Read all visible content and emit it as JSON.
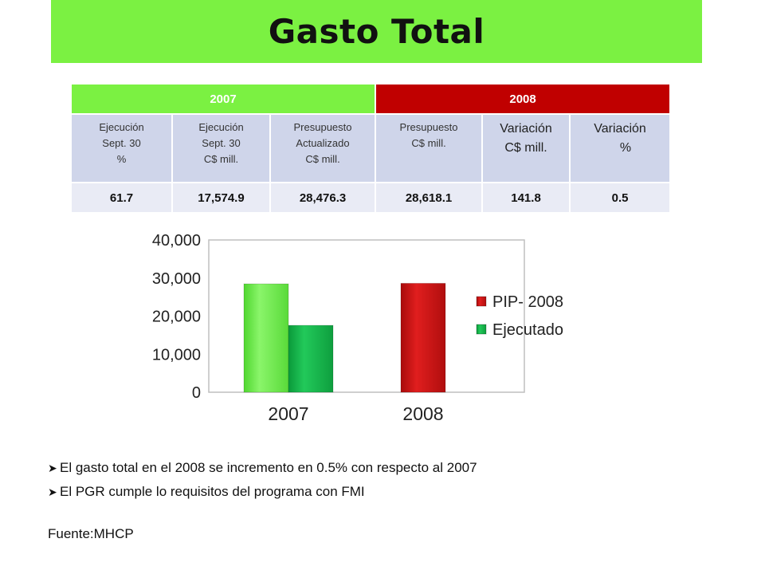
{
  "title": "Gasto Total",
  "table": {
    "year_2007": "2007",
    "year_2008": "2008",
    "headers": [
      [
        "Ejecución",
        "Sept. 30",
        "%"
      ],
      [
        "Ejecución",
        "Sept. 30",
        "C$ mill."
      ],
      [
        "Presupuesto",
        "Actualizado",
        "C$ mill."
      ],
      [
        "Presupuesto",
        "C$ mill."
      ],
      [
        "Variación",
        "C$ mill."
      ],
      [
        "Variación",
        "%"
      ]
    ],
    "values": [
      "61.7",
      "17,574.9",
      "28,476.3",
      "28,618.1",
      "141.8",
      "0.5"
    ]
  },
  "chart_data": {
    "type": "bar",
    "categories": [
      "2007",
      "2008"
    ],
    "series": [
      {
        "name": "PIP- 2008",
        "values": [
          28476.3,
          28618.1
        ],
        "color": "#e03030"
      },
      {
        "name": "Ejecutado",
        "values": [
          17574.9,
          null
        ],
        "color": "#22b04e"
      }
    ],
    "bar_colors": {
      "2007_pip": "#6ee84a",
      "2007_ejecutado": "#13b84a",
      "2008_pip": "#d01515"
    },
    "y_ticks": [
      "0",
      "10,000",
      "20,000",
      "30,000",
      "40,000"
    ],
    "ylim": [
      0,
      40000
    ],
    "legend_position": "right",
    "grid": false
  },
  "bullets": [
    "El gasto total en el 2008 se incremento en 0.5% con respecto al 2007",
    "El PGR cumple lo requisitos del programa con FMI"
  ],
  "source": "Fuente:MHCP"
}
